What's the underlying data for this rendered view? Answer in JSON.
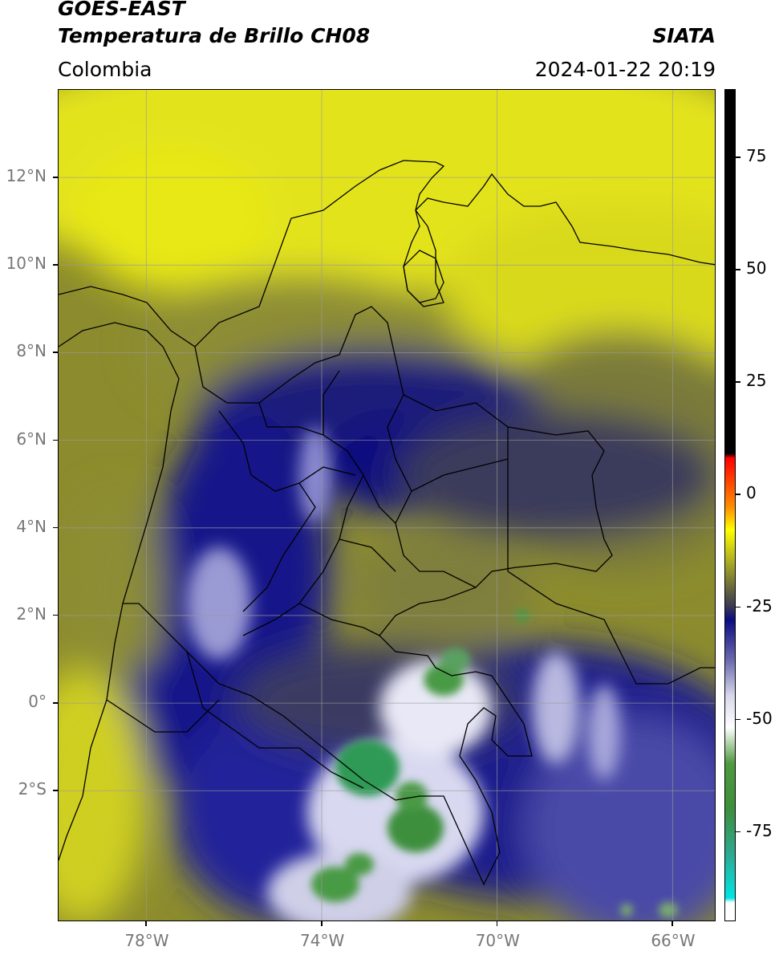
{
  "header": {
    "satellite": "GOES-EAST",
    "product": "Temperatura de Brillo CH08",
    "region": "Colombia",
    "source": "SIATA",
    "datetime": "2024-01-22 20:19"
  },
  "map": {
    "lat_range": [
      -5,
      14
    ],
    "lon_range": [
      -80,
      -65
    ],
    "lat_ticks": [
      {
        "value": 12,
        "label": "12°N"
      },
      {
        "value": 10,
        "label": "10°N"
      },
      {
        "value": 8,
        "label": "8°N"
      },
      {
        "value": 6,
        "label": "6°N"
      },
      {
        "value": 4,
        "label": "4°N"
      },
      {
        "value": 2,
        "label": "2°N"
      },
      {
        "value": 0,
        "label": "0°"
      },
      {
        "value": -2,
        "label": "2°S"
      }
    ],
    "lon_ticks": [
      {
        "value": -78,
        "label": "78°W"
      },
      {
        "value": -74,
        "label": "74°W"
      },
      {
        "value": -70,
        "label": "70°W"
      },
      {
        "value": -66,
        "label": "66°W"
      }
    ],
    "gridlines": true
  },
  "colorbar": {
    "range": [
      -95,
      90
    ],
    "ticks": [
      {
        "value": 75,
        "label": "75"
      },
      {
        "value": 50,
        "label": "50"
      },
      {
        "value": 25,
        "label": "25"
      },
      {
        "value": 0,
        "label": "0"
      },
      {
        "value": -25,
        "label": "-25"
      },
      {
        "value": -50,
        "label": "-50"
      },
      {
        "value": -75,
        "label": "-75"
      }
    ],
    "stops": [
      {
        "value": -95,
        "color": "#ffffff"
      },
      {
        "value": -91,
        "color": "#ffffff"
      },
      {
        "value": -90,
        "color": "#00e5e5"
      },
      {
        "value": -80,
        "color": "#2ea88f"
      },
      {
        "value": -70,
        "color": "#3c8f3c"
      },
      {
        "value": -60,
        "color": "#4f9a3f"
      },
      {
        "value": -52,
        "color": "#ffffff"
      },
      {
        "value": -45,
        "color": "#d8d8ec"
      },
      {
        "value": -37,
        "color": "#6a6aae"
      },
      {
        "value": -28,
        "color": "#0c0c82"
      },
      {
        "value": -25,
        "color": "#3a3a52"
      },
      {
        "value": -18,
        "color": "#8a8a30"
      },
      {
        "value": -8,
        "color": "#ffff00"
      },
      {
        "value": -3,
        "color": "#ff9000"
      },
      {
        "value": 8,
        "color": "#ff0000"
      },
      {
        "value": 9,
        "color": "#000000"
      },
      {
        "value": 90,
        "color": "#000000"
      }
    ]
  }
}
